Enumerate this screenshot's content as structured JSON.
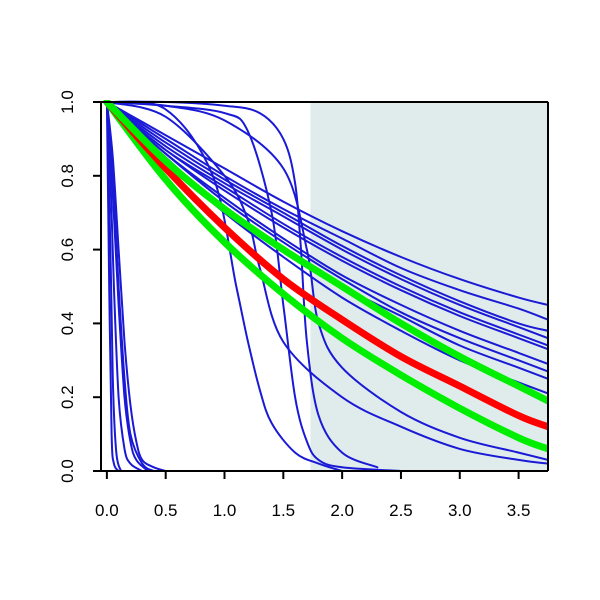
{
  "chart_data": {
    "type": "line",
    "title": "",
    "xlabel": "",
    "ylabel": "",
    "xlim": [
      -0.05,
      3.75
    ],
    "ylim": [
      0,
      1
    ],
    "grid": false,
    "legend": "none",
    "shaded_region": {
      "x_from": 1.73,
      "x_to": 3.75,
      "color": "#e0ecec"
    },
    "x_ticks": [
      "0.0",
      "0.5",
      "1.0",
      "1.5",
      "2.0",
      "2.5",
      "3.0",
      "3.5"
    ],
    "y_ticks": [
      "0.0",
      "0.2",
      "0.4",
      "0.6",
      "0.8",
      "1.0"
    ],
    "colors": {
      "thin_curves": "#1a1ad6",
      "highlight_red": "#ff0000",
      "highlight_green": "#00ee00",
      "axis": "#000000"
    },
    "series": [
      {
        "color": "thin_curves",
        "x": [
          0,
          0.02,
          0.04,
          0.06,
          0.1
        ],
        "y": [
          1.0,
          0.5,
          0.1,
          0.02,
          0.0
        ]
      },
      {
        "color": "thin_curves",
        "x": [
          0,
          0.03,
          0.05,
          0.08,
          0.12
        ],
        "y": [
          1.0,
          0.6,
          0.25,
          0.05,
          0.0
        ]
      },
      {
        "color": "thin_curves",
        "x": [
          0,
          0.03,
          0.06,
          0.1,
          0.15,
          0.2,
          0.3
        ],
        "y": [
          1.0,
          0.8,
          0.5,
          0.2,
          0.06,
          0.02,
          0.0
        ]
      },
      {
        "color": "thin_curves",
        "x": [
          0,
          0.05,
          0.1,
          0.15,
          0.2,
          0.25,
          0.35
        ],
        "y": [
          1.0,
          0.75,
          0.45,
          0.2,
          0.08,
          0.03,
          0.0
        ]
      },
      {
        "color": "thin_curves",
        "x": [
          0,
          0.05,
          0.1,
          0.15,
          0.2,
          0.3,
          0.4
        ],
        "y": [
          1.0,
          0.8,
          0.5,
          0.25,
          0.1,
          0.02,
          0.0
        ]
      },
      {
        "color": "thin_curves",
        "x": [
          0,
          0.05,
          0.1,
          0.15,
          0.2,
          0.25,
          0.3,
          0.4,
          0.5
        ],
        "y": [
          1.0,
          0.85,
          0.6,
          0.35,
          0.18,
          0.08,
          0.03,
          0.01,
          0.0
        ]
      },
      {
        "color": "thin_curves",
        "x": [
          0,
          0.5,
          1.0,
          1.2,
          1.4,
          1.5,
          1.6,
          1.7,
          1.8,
          2.0,
          2.5
        ],
        "y": [
          1.0,
          0.99,
          0.97,
          0.92,
          0.7,
          0.45,
          0.2,
          0.08,
          0.03,
          0.01,
          0.0
        ]
      },
      {
        "color": "thin_curves",
        "x": [
          0,
          0.5,
          0.9,
          1.1,
          1.2,
          1.3,
          1.4,
          1.6,
          1.8,
          2.0
        ],
        "y": [
          1.0,
          0.98,
          0.8,
          0.5,
          0.35,
          0.22,
          0.13,
          0.05,
          0.02,
          0.0
        ]
      },
      {
        "color": "thin_curves",
        "x": [
          0,
          0.5,
          1.0,
          1.3,
          1.5,
          1.6,
          1.65,
          1.7,
          1.8,
          2.0,
          2.3
        ],
        "y": [
          1.0,
          1.0,
          0.99,
          0.97,
          0.9,
          0.78,
          0.6,
          0.35,
          0.15,
          0.05,
          0.01
        ]
      },
      {
        "color": "thin_curves",
        "x": [
          0,
          0.5,
          1.0,
          1.2,
          1.3,
          1.5,
          2.0,
          2.5,
          3.0,
          3.5,
          3.75
        ],
        "y": [
          1.0,
          0.96,
          0.8,
          0.68,
          0.55,
          0.35,
          0.2,
          0.12,
          0.06,
          0.03,
          0.02
        ]
      },
      {
        "color": "thin_curves",
        "x": [
          0,
          0.5,
          1.0,
          1.5,
          1.7,
          1.8,
          2.0,
          2.5,
          3.0,
          3.5,
          3.75
        ],
        "y": [
          1.0,
          0.99,
          0.95,
          0.82,
          0.6,
          0.4,
          0.28,
          0.16,
          0.09,
          0.05,
          0.03
        ]
      },
      {
        "color": "thin_curves",
        "x": [
          0,
          0.5,
          1.0,
          1.5,
          2.0,
          2.5,
          3.0,
          3.5,
          3.75
        ],
        "y": [
          1.0,
          0.84,
          0.7,
          0.58,
          0.47,
          0.38,
          0.3,
          0.24,
          0.21
        ]
      },
      {
        "color": "thin_curves",
        "x": [
          0,
          0.5,
          1.0,
          1.5,
          2.0,
          2.5,
          3.0,
          3.5,
          3.75
        ],
        "y": [
          1.0,
          0.86,
          0.73,
          0.62,
          0.52,
          0.43,
          0.36,
          0.3,
          0.27
        ]
      },
      {
        "color": "thin_curves",
        "x": [
          0,
          0.5,
          1.0,
          1.5,
          2.0,
          2.5,
          3.0,
          3.5,
          3.75
        ],
        "y": [
          1.0,
          0.87,
          0.76,
          0.66,
          0.57,
          0.49,
          0.42,
          0.36,
          0.33
        ]
      },
      {
        "color": "thin_curves",
        "x": [
          0,
          0.5,
          1.0,
          1.5,
          2.0,
          2.5,
          3.0,
          3.5,
          3.75
        ],
        "y": [
          1.0,
          0.88,
          0.78,
          0.69,
          0.6,
          0.52,
          0.45,
          0.39,
          0.36
        ]
      },
      {
        "color": "thin_curves",
        "x": [
          0,
          0.5,
          1.0,
          1.5,
          2.0,
          2.5,
          3.0,
          3.5,
          3.75
        ],
        "y": [
          1.0,
          0.89,
          0.79,
          0.7,
          0.61,
          0.53,
          0.46,
          0.4,
          0.38
        ]
      },
      {
        "color": "thin_curves",
        "x": [
          0,
          0.5,
          1.0,
          1.5,
          2.0,
          2.5,
          3.0,
          3.5,
          3.75
        ],
        "y": [
          1.0,
          0.9,
          0.8,
          0.71,
          0.63,
          0.55,
          0.49,
          0.44,
          0.41
        ]
      },
      {
        "color": "thin_curves",
        "x": [
          0,
          0.5,
          1.0,
          1.5,
          2.0,
          2.5,
          3.0,
          3.5,
          3.75
        ],
        "y": [
          1.0,
          0.91,
          0.82,
          0.73,
          0.65,
          0.58,
          0.52,
          0.47,
          0.45
        ]
      },
      {
        "color": "thin_curves",
        "x": [
          0,
          0.5,
          1.0,
          1.5,
          2.0,
          2.5,
          3.0,
          3.5,
          3.75
        ],
        "y": [
          1.0,
          0.85,
          0.71,
          0.6,
          0.5,
          0.42,
          0.34,
          0.28,
          0.25
        ]
      },
      {
        "color": "thin_curves",
        "x": [
          0,
          0.5,
          1.0,
          1.5,
          2.0,
          2.5,
          3.0,
          3.5,
          3.75
        ],
        "y": [
          1.0,
          0.86,
          0.74,
          0.63,
          0.53,
          0.45,
          0.38,
          0.32,
          0.29
        ]
      },
      {
        "color": "thin_curves",
        "x": [
          0,
          0.5,
          1.0,
          1.5,
          2.0,
          2.5,
          3.0,
          3.5,
          3.75
        ],
        "y": [
          1.0,
          0.87,
          0.77,
          0.67,
          0.58,
          0.5,
          0.43,
          0.37,
          0.34
        ]
      },
      {
        "color": "highlight_green",
        "x": [
          0,
          0.5,
          1.0,
          1.5,
          2.0,
          2.5,
          3.0,
          3.5,
          3.75
        ],
        "y": [
          1.0,
          0.79,
          0.62,
          0.48,
          0.36,
          0.26,
          0.17,
          0.09,
          0.06
        ]
      },
      {
        "color": "highlight_red",
        "x": [
          0,
          0.5,
          1.0,
          1.5,
          2.0,
          2.5,
          3.0,
          3.5,
          3.75
        ],
        "y": [
          1.0,
          0.82,
          0.66,
          0.52,
          0.41,
          0.31,
          0.23,
          0.15,
          0.12
        ]
      },
      {
        "color": "highlight_green",
        "x": [
          0,
          0.5,
          1.0,
          1.5,
          2.0,
          2.5,
          3.0,
          3.5,
          3.75
        ],
        "y": [
          1.0,
          0.84,
          0.71,
          0.6,
          0.5,
          0.4,
          0.31,
          0.23,
          0.19
        ]
      }
    ]
  }
}
